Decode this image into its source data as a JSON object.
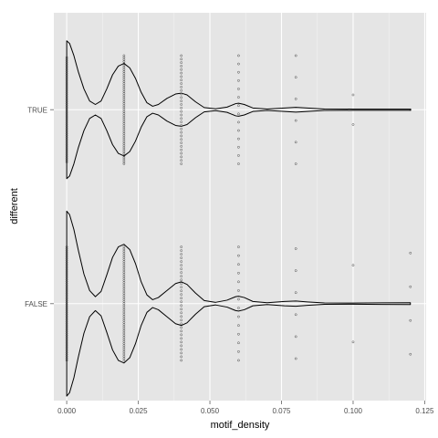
{
  "chart_data": {
    "type": "violin",
    "xlabel": "motif_density",
    "ylabel": "different",
    "xlim": [
      -0.0045,
      0.1255
    ],
    "x_ticks": [
      0,
      0.025,
      0.05,
      0.075,
      0.1,
      0.125
    ],
    "x_tick_labels": [
      "0.000",
      "0.025",
      "0.050",
      "0.075",
      "0.100",
      "0.125"
    ],
    "x_minor_ticks": [
      0.0125,
      0.0375,
      0.0625,
      0.0875,
      0.1125
    ],
    "categories": [
      "TRUE",
      "FALSE"
    ],
    "grid": true,
    "violins": [
      {
        "category": "TRUE",
        "profile": [
          {
            "x": 0.0,
            "w": 0.79
          },
          {
            "x": 0.001,
            "w": 0.76
          },
          {
            "x": 0.0025,
            "w": 0.62
          },
          {
            "x": 0.004,
            "w": 0.44
          },
          {
            "x": 0.006,
            "w": 0.24
          },
          {
            "x": 0.008,
            "w": 0.1
          },
          {
            "x": 0.01,
            "w": 0.06
          },
          {
            "x": 0.012,
            "w": 0.1
          },
          {
            "x": 0.014,
            "w": 0.24
          },
          {
            "x": 0.016,
            "w": 0.4
          },
          {
            "x": 0.018,
            "w": 0.5
          },
          {
            "x": 0.02,
            "w": 0.53
          },
          {
            "x": 0.022,
            "w": 0.48
          },
          {
            "x": 0.024,
            "w": 0.36
          },
          {
            "x": 0.026,
            "w": 0.2
          },
          {
            "x": 0.028,
            "w": 0.08
          },
          {
            "x": 0.03,
            "w": 0.04
          },
          {
            "x": 0.032,
            "w": 0.06
          },
          {
            "x": 0.035,
            "w": 0.13
          },
          {
            "x": 0.038,
            "w": 0.18
          },
          {
            "x": 0.04,
            "w": 0.19
          },
          {
            "x": 0.042,
            "w": 0.17
          },
          {
            "x": 0.045,
            "w": 0.09
          },
          {
            "x": 0.048,
            "w": 0.025
          },
          {
            "x": 0.052,
            "w": 0.01
          },
          {
            "x": 0.056,
            "w": 0.03
          },
          {
            "x": 0.059,
            "w": 0.07
          },
          {
            "x": 0.06,
            "w": 0.075
          },
          {
            "x": 0.062,
            "w": 0.06
          },
          {
            "x": 0.065,
            "w": 0.02
          },
          {
            "x": 0.07,
            "w": 0.008
          },
          {
            "x": 0.076,
            "w": 0.02
          },
          {
            "x": 0.08,
            "w": 0.028
          },
          {
            "x": 0.084,
            "w": 0.02
          },
          {
            "x": 0.09,
            "w": 0.008
          },
          {
            "x": 0.1,
            "w": 0.007
          },
          {
            "x": 0.11,
            "w": 0.006
          },
          {
            "x": 0.12,
            "w": 0.006
          }
        ],
        "points": [
          {
            "x": 0.0,
            "spread": 0.6,
            "n": 60
          },
          {
            "x": 0.02,
            "spread": 0.62,
            "n": 55
          },
          {
            "x": 0.04,
            "spread": 0.62,
            "n": 32
          },
          {
            "x": 0.06,
            "spread": 0.62,
            "n": 14
          },
          {
            "x": 0.08,
            "spread": 0.62,
            "n": 6
          },
          {
            "x": 0.1,
            "spread": 0.17,
            "n": 2
          },
          {
            "x": 0.12,
            "spread": 0.52,
            "n": 1
          }
        ]
      },
      {
        "category": "FALSE",
        "profile": [
          {
            "x": 0.0,
            "w": 1.06
          },
          {
            "x": 0.001,
            "w": 1.02
          },
          {
            "x": 0.0025,
            "w": 0.85
          },
          {
            "x": 0.004,
            "w": 0.62
          },
          {
            "x": 0.006,
            "w": 0.34
          },
          {
            "x": 0.008,
            "w": 0.15
          },
          {
            "x": 0.01,
            "w": 0.08
          },
          {
            "x": 0.012,
            "w": 0.14
          },
          {
            "x": 0.014,
            "w": 0.33
          },
          {
            "x": 0.016,
            "w": 0.53
          },
          {
            "x": 0.018,
            "w": 0.65
          },
          {
            "x": 0.02,
            "w": 0.68
          },
          {
            "x": 0.022,
            "w": 0.62
          },
          {
            "x": 0.024,
            "w": 0.46
          },
          {
            "x": 0.026,
            "w": 0.25
          },
          {
            "x": 0.028,
            "w": 0.1
          },
          {
            "x": 0.03,
            "w": 0.045
          },
          {
            "x": 0.032,
            "w": 0.07
          },
          {
            "x": 0.035,
            "w": 0.15
          },
          {
            "x": 0.038,
            "w": 0.23
          },
          {
            "x": 0.04,
            "w": 0.25
          },
          {
            "x": 0.042,
            "w": 0.22
          },
          {
            "x": 0.045,
            "w": 0.12
          },
          {
            "x": 0.048,
            "w": 0.035
          },
          {
            "x": 0.052,
            "w": 0.015
          },
          {
            "x": 0.056,
            "w": 0.04
          },
          {
            "x": 0.059,
            "w": 0.08
          },
          {
            "x": 0.06,
            "w": 0.085
          },
          {
            "x": 0.062,
            "w": 0.07
          },
          {
            "x": 0.065,
            "w": 0.025
          },
          {
            "x": 0.07,
            "w": 0.01
          },
          {
            "x": 0.076,
            "w": 0.025
          },
          {
            "x": 0.08,
            "w": 0.03
          },
          {
            "x": 0.084,
            "w": 0.02
          },
          {
            "x": 0.09,
            "w": 0.008
          },
          {
            "x": 0.1,
            "w": 0.007
          },
          {
            "x": 0.11,
            "w": 0.009
          },
          {
            "x": 0.12,
            "w": 0.01
          }
        ],
        "points": [
          {
            "x": 0.0,
            "spread": 0.65,
            "n": 60
          },
          {
            "x": 0.02,
            "spread": 0.65,
            "n": 55
          },
          {
            "x": 0.04,
            "spread": 0.65,
            "n": 32
          },
          {
            "x": 0.06,
            "spread": 0.65,
            "n": 14
          },
          {
            "x": 0.08,
            "spread": 0.63,
            "n": 6
          },
          {
            "x": 0.1,
            "spread": 0.44,
            "n": 2
          },
          {
            "x": 0.12,
            "spread": 0.58,
            "n": 4
          }
        ]
      }
    ],
    "colors": {
      "panel": "#e5e5e5",
      "grid_major": "#ffffff",
      "grid_minor": "#f2f2f2",
      "outline": "#000000",
      "point": "#333333",
      "tick_text": "#4d4d4d",
      "tick_mark": "#7f7f7f"
    }
  }
}
